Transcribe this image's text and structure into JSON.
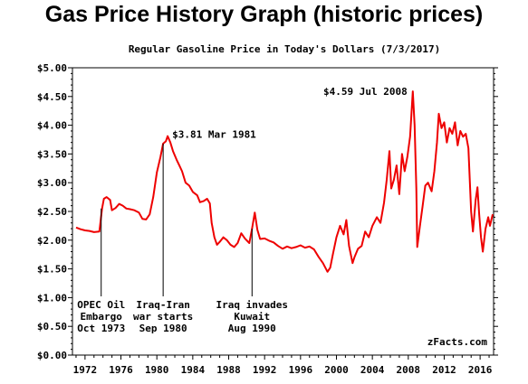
{
  "page": {
    "title": "Gas Price History Graph (historic prices)"
  },
  "chart_data": {
    "type": "line",
    "title": "Regular Gasoline Price in Today's Dollars (7/3/2017)",
    "xlabel": "",
    "ylabel": "",
    "xlim": [
      1970.6,
      2017.5
    ],
    "ylim": [
      0,
      5
    ],
    "y_ticks": [
      0,
      0.5,
      1,
      1.5,
      2,
      2.5,
      3,
      3.5,
      4,
      4.5,
      5
    ],
    "y_tick_labels": [
      "$0.00",
      "$0.50",
      "$1.00",
      "$1.50",
      "$2.00",
      "$2.50",
      "$3.00",
      "$3.50",
      "$4.00",
      "$4.50",
      "$5.00"
    ],
    "x_ticks": [
      1972,
      1976,
      1980,
      1984,
      1988,
      1992,
      1996,
      2000,
      2004,
      2008,
      2012,
      2016
    ],
    "x_tick_labels": [
      "1972",
      "1976",
      "1980",
      "1984",
      "1988",
      "1992",
      "1996",
      "2000",
      "2004",
      "2008",
      "2012",
      "2016"
    ],
    "grid": false,
    "line_color": "#ee0000",
    "series": [
      {
        "name": "",
        "points": [
          [
            1971.0,
            2.22
          ],
          [
            1971.5,
            2.19
          ],
          [
            1972.0,
            2.17
          ],
          [
            1972.5,
            2.16
          ],
          [
            1973.0,
            2.14
          ],
          [
            1973.6,
            2.15
          ],
          [
            1973.9,
            2.55
          ],
          [
            1974.1,
            2.72
          ],
          [
            1974.4,
            2.75
          ],
          [
            1974.8,
            2.7
          ],
          [
            1975.0,
            2.52
          ],
          [
            1975.4,
            2.56
          ],
          [
            1975.8,
            2.63
          ],
          [
            1976.2,
            2.6
          ],
          [
            1976.6,
            2.55
          ],
          [
            1977.0,
            2.54
          ],
          [
            1977.5,
            2.52
          ],
          [
            1978.0,
            2.48
          ],
          [
            1978.4,
            2.37
          ],
          [
            1978.8,
            2.36
          ],
          [
            1979.2,
            2.45
          ],
          [
            1979.6,
            2.75
          ],
          [
            1980.0,
            3.18
          ],
          [
            1980.4,
            3.45
          ],
          [
            1980.7,
            3.68
          ],
          [
            1981.0,
            3.72
          ],
          [
            1981.2,
            3.81
          ],
          [
            1981.5,
            3.7
          ],
          [
            1981.8,
            3.55
          ],
          [
            1982.2,
            3.4
          ],
          [
            1982.5,
            3.3
          ],
          [
            1982.8,
            3.2
          ],
          [
            1983.2,
            3.0
          ],
          [
            1983.6,
            2.95
          ],
          [
            1984.0,
            2.84
          ],
          [
            1984.5,
            2.78
          ],
          [
            1984.8,
            2.66
          ],
          [
            1985.2,
            2.68
          ],
          [
            1985.6,
            2.72
          ],
          [
            1985.9,
            2.64
          ],
          [
            1986.1,
            2.3
          ],
          [
            1986.4,
            2.05
          ],
          [
            1986.7,
            1.92
          ],
          [
            1987.0,
            1.97
          ],
          [
            1987.4,
            2.05
          ],
          [
            1987.8,
            2.0
          ],
          [
            1988.2,
            1.92
          ],
          [
            1988.6,
            1.88
          ],
          [
            1989.0,
            1.95
          ],
          [
            1989.4,
            2.12
          ],
          [
            1989.8,
            2.03
          ],
          [
            1990.3,
            1.95
          ],
          [
            1990.6,
            2.2
          ],
          [
            1990.9,
            2.48
          ],
          [
            1991.2,
            2.18
          ],
          [
            1991.5,
            2.02
          ],
          [
            1992.0,
            2.03
          ],
          [
            1992.5,
            1.99
          ],
          [
            1993.0,
            1.96
          ],
          [
            1993.5,
            1.9
          ],
          [
            1994.0,
            1.85
          ],
          [
            1994.5,
            1.89
          ],
          [
            1995.0,
            1.86
          ],
          [
            1995.5,
            1.88
          ],
          [
            1996.0,
            1.91
          ],
          [
            1996.5,
            1.87
          ],
          [
            1997.0,
            1.89
          ],
          [
            1997.5,
            1.84
          ],
          [
            1998.0,
            1.71
          ],
          [
            1998.5,
            1.6
          ],
          [
            1999.0,
            1.45
          ],
          [
            1999.3,
            1.52
          ],
          [
            1999.6,
            1.75
          ],
          [
            2000.0,
            2.05
          ],
          [
            2000.4,
            2.25
          ],
          [
            2000.8,
            2.1
          ],
          [
            2001.1,
            2.35
          ],
          [
            2001.4,
            1.9
          ],
          [
            2001.8,
            1.6
          ],
          [
            2002.0,
            1.7
          ],
          [
            2002.4,
            1.85
          ],
          [
            2002.8,
            1.9
          ],
          [
            2003.2,
            2.15
          ],
          [
            2003.6,
            2.05
          ],
          [
            2004.0,
            2.25
          ],
          [
            2004.5,
            2.4
          ],
          [
            2004.9,
            2.3
          ],
          [
            2005.3,
            2.65
          ],
          [
            2005.6,
            3.05
          ],
          [
            2005.9,
            3.55
          ],
          [
            2006.1,
            2.9
          ],
          [
            2006.4,
            3.05
          ],
          [
            2006.7,
            3.3
          ],
          [
            2007.0,
            2.8
          ],
          [
            2007.3,
            3.5
          ],
          [
            2007.6,
            3.2
          ],
          [
            2007.9,
            3.45
          ],
          [
            2008.2,
            3.8
          ],
          [
            2008.5,
            4.59
          ],
          [
            2008.7,
            4.0
          ],
          [
            2008.9,
            2.9
          ],
          [
            2009.0,
            1.88
          ],
          [
            2009.3,
            2.25
          ],
          [
            2009.6,
            2.6
          ],
          [
            2009.9,
            2.95
          ],
          [
            2010.2,
            3.0
          ],
          [
            2010.6,
            2.85
          ],
          [
            2010.9,
            3.2
          ],
          [
            2011.2,
            3.7
          ],
          [
            2011.4,
            4.2
          ],
          [
            2011.7,
            3.95
          ],
          [
            2012.0,
            4.05
          ],
          [
            2012.3,
            3.7
          ],
          [
            2012.6,
            3.95
          ],
          [
            2012.9,
            3.85
          ],
          [
            2013.2,
            4.05
          ],
          [
            2013.5,
            3.65
          ],
          [
            2013.8,
            3.9
          ],
          [
            2014.1,
            3.8
          ],
          [
            2014.4,
            3.85
          ],
          [
            2014.7,
            3.6
          ],
          [
            2015.0,
            2.5
          ],
          [
            2015.2,
            2.15
          ],
          [
            2015.5,
            2.7
          ],
          [
            2015.7,
            2.92
          ],
          [
            2015.9,
            2.45
          ],
          [
            2016.1,
            2.05
          ],
          [
            2016.3,
            1.8
          ],
          [
            2016.6,
            2.2
          ],
          [
            2016.9,
            2.4
          ],
          [
            2017.1,
            2.25
          ],
          [
            2017.4,
            2.45
          ]
        ]
      }
    ],
    "annotations": [
      {
        "text": "$3.81 Mar 1981",
        "x": 1981.2,
        "y": 3.81
      },
      {
        "text": "$4.59 Jul 2008",
        "x": 2008.5,
        "y": 4.59
      }
    ],
    "events": [
      {
        "x": 1973.8,
        "lines": [
          "OPEC Oil",
          "Embargo",
          "Oct 1973"
        ]
      },
      {
        "x": 1980.7,
        "lines": [
          "Iraq-Iran",
          "war starts",
          "Sep 1980"
        ]
      },
      {
        "x": 1990.6,
        "lines": [
          "Iraq invades",
          "Kuwait",
          "Aug 1990"
        ]
      }
    ],
    "credit": "zFacts.com"
  }
}
